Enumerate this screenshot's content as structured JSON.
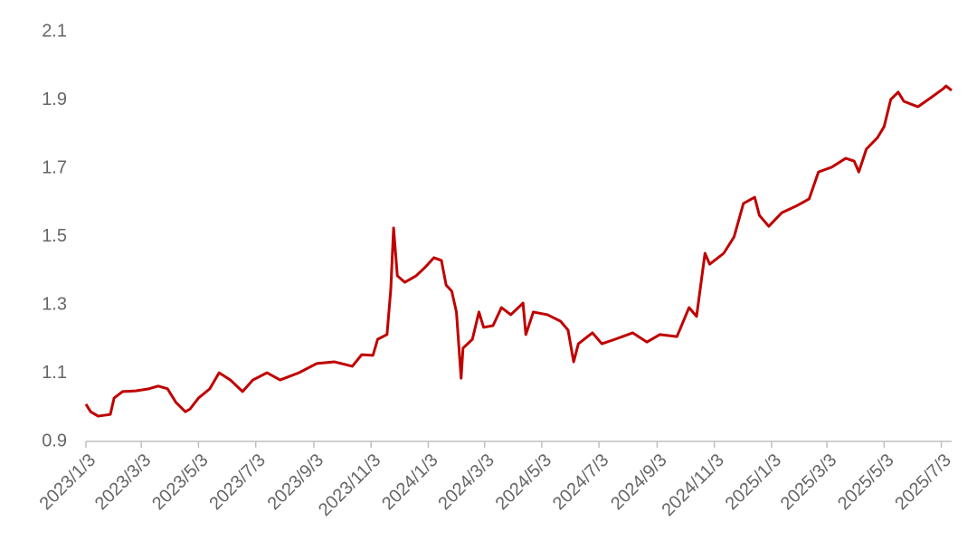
{
  "chart_data": {
    "type": "line",
    "x": [
      "2023-01-03",
      "2023-01-08",
      "2023-01-16",
      "2023-01-29",
      "2023-02-02",
      "2023-02-11",
      "2023-02-25",
      "2023-03-11",
      "2023-03-21",
      "2023-03-31",
      "2023-04-09",
      "2023-04-19",
      "2023-04-24",
      "2023-05-03",
      "2023-05-15",
      "2023-05-25",
      "2023-06-06",
      "2023-06-19",
      "2023-06-30",
      "2023-07-15",
      "2023-07-29",
      "2023-08-18",
      "2023-09-06",
      "2023-09-25",
      "2023-10-14",
      "2023-10-24",
      "2023-11-05",
      "2023-11-10",
      "2023-11-20",
      "2023-11-24",
      "2023-11-27",
      "2023-12-01",
      "2023-12-09",
      "2023-12-21",
      "2023-12-31",
      "2024-01-09",
      "2024-01-17",
      "2024-01-22",
      "2024-01-28",
      "2024-02-02",
      "2024-02-07",
      "2024-02-09",
      "2024-02-19",
      "2024-02-26",
      "2024-03-02",
      "2024-03-12",
      "2024-03-21",
      "2024-03-31",
      "2024-04-13",
      "2024-04-16",
      "2024-04-24",
      "2024-05-09",
      "2024-05-23",
      "2024-05-31",
      "2024-06-06",
      "2024-06-11",
      "2024-06-26",
      "2024-07-06",
      "2024-07-20",
      "2024-08-08",
      "2024-08-23",
      "2024-09-06",
      "2024-09-24",
      "2024-09-27",
      "2024-10-07",
      "2024-10-15",
      "2024-10-24",
      "2024-10-29",
      "2024-11-13",
      "2024-11-24",
      "2024-12-04",
      "2024-12-16",
      "2024-12-21",
      "2024-12-31",
      "2025-01-14",
      "2025-01-29",
      "2025-02-12",
      "2025-02-22",
      "2025-03-08",
      "2025-03-23",
      "2025-04-01",
      "2025-04-06",
      "2025-04-14",
      "2025-04-26",
      "2025-05-03",
      "2025-05-10",
      "2025-05-18",
      "2025-05-24",
      "2025-06-08",
      "2025-06-22",
      "2025-07-05",
      "2025-07-08",
      "2025-07-14"
    ],
    "series": [
      {
        "color": "#c00000",
        "values": [
          1.009,
          0.987,
          0.974,
          0.979,
          1.027,
          1.046,
          1.048,
          1.054,
          1.062,
          1.054,
          1.014,
          0.987,
          0.995,
          1.027,
          1.054,
          1.101,
          1.08,
          1.046,
          1.08,
          1.101,
          1.08,
          1.101,
          1.128,
          1.133,
          1.12,
          1.154,
          1.152,
          1.199,
          1.213,
          1.345,
          1.525,
          1.385,
          1.366,
          1.385,
          1.411,
          1.438,
          1.43,
          1.358,
          1.34,
          1.279,
          1.085,
          1.173,
          1.199,
          1.279,
          1.234,
          1.239,
          1.292,
          1.271,
          1.305,
          1.213,
          1.279,
          1.271,
          1.252,
          1.226,
          1.133,
          1.186,
          1.218,
          1.186,
          1.199,
          1.218,
          1.191,
          1.213,
          1.207,
          1.226,
          1.292,
          1.266,
          1.451,
          1.419,
          1.451,
          1.499,
          1.597,
          1.615,
          1.562,
          1.53,
          1.57,
          1.589,
          1.61,
          1.689,
          1.703,
          1.729,
          1.721,
          1.689,
          1.756,
          1.79,
          1.822,
          1.901,
          1.923,
          1.896,
          1.88,
          1.907,
          1.933,
          1.941,
          1.928
        ]
      }
    ],
    "xlim": [
      "2023-01-03",
      "2025-07-14"
    ],
    "xticks": [
      {
        "value": "2023-01-03",
        "label": "2023/1/3"
      },
      {
        "value": "2023-03-03",
        "label": "2023/3/3"
      },
      {
        "value": "2023-05-03",
        "label": "2023/5/3"
      },
      {
        "value": "2023-07-03",
        "label": "2023/7/3"
      },
      {
        "value": "2023-09-03",
        "label": "2023/9/3"
      },
      {
        "value": "2023-11-03",
        "label": "2023/11/3"
      },
      {
        "value": "2024-01-03",
        "label": "2024/1/3"
      },
      {
        "value": "2024-03-03",
        "label": "2024/3/3"
      },
      {
        "value": "2024-05-03",
        "label": "2024/5/3"
      },
      {
        "value": "2024-07-03",
        "label": "2024/7/3"
      },
      {
        "value": "2024-09-03",
        "label": "2024/9/3"
      },
      {
        "value": "2024-11-03",
        "label": "2024/11/3"
      },
      {
        "value": "2025-01-03",
        "label": "2025/1/3"
      },
      {
        "value": "2025-03-03",
        "label": "2025/3/3"
      },
      {
        "value": "2025-05-03",
        "label": "2025/5/3"
      },
      {
        "value": "2025-07-03",
        "label": "2025/7/3"
      }
    ],
    "ylim": [
      0.9,
      2.1
    ],
    "yticks": [
      0.9,
      1.1,
      1.3,
      1.5,
      1.7,
      1.9,
      2.1
    ],
    "grid": false
  }
}
